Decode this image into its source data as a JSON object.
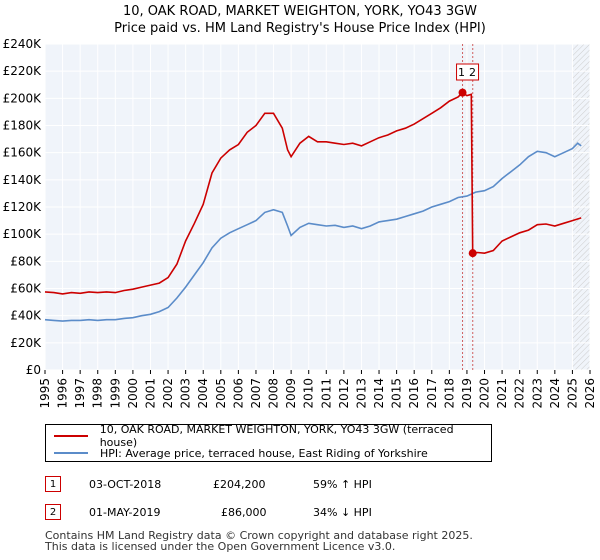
{
  "header": {
    "title": "10, OAK ROAD, MARKET WEIGHTON, YORK, YO43 3GW",
    "subtitle": "Price paid vs. HM Land Registry's House Price Index (HPI)"
  },
  "chart_data": {
    "type": "line",
    "title": "10, OAK ROAD, MARKET WEIGHTON, YORK, YO43 3GW",
    "subtitle": "Price paid vs. HM Land Registry's House Price Index (HPI)",
    "xlim": [
      1995,
      2026
    ],
    "ylim": [
      0,
      240000
    ],
    "x_ticks": [
      "1995",
      "1996",
      "1997",
      "1998",
      "1999",
      "2000",
      "2001",
      "2002",
      "2003",
      "2004",
      "2005",
      "2006",
      "2007",
      "2008",
      "2009",
      "2010",
      "2011",
      "2012",
      "2013",
      "2014",
      "2015",
      "2016",
      "2017",
      "2018",
      "2019",
      "2020",
      "2021",
      "2022",
      "2023",
      "2024",
      "2025",
      "2026"
    ],
    "y_ticks": [
      {
        "value": 0,
        "label": "£0"
      },
      {
        "value": 20000,
        "label": "£20K"
      },
      {
        "value": 40000,
        "label": "£40K"
      },
      {
        "value": 60000,
        "label": "£60K"
      },
      {
        "value": 80000,
        "label": "£80K"
      },
      {
        "value": 100000,
        "label": "£100K"
      },
      {
        "value": 120000,
        "label": "£120K"
      },
      {
        "value": 140000,
        "label": "£140K"
      },
      {
        "value": 160000,
        "label": "£160K"
      },
      {
        "value": 180000,
        "label": "£180K"
      },
      {
        "value": 200000,
        "label": "£200K"
      },
      {
        "value": 220000,
        "label": "£220K"
      },
      {
        "value": 240000,
        "label": "£240K"
      }
    ],
    "grid": true,
    "series": [
      {
        "name": "10, OAK ROAD, MARKET WEIGHTON, YORK, YO43 3GW (terraced house)",
        "color": "#cc0000",
        "points": [
          [
            1995.0,
            57500
          ],
          [
            1995.5,
            57000
          ],
          [
            1996.0,
            56000
          ],
          [
            1996.5,
            57000
          ],
          [
            1997.0,
            56500
          ],
          [
            1997.5,
            57500
          ],
          [
            1998.0,
            57000
          ],
          [
            1998.5,
            57500
          ],
          [
            1999.0,
            57000
          ],
          [
            1999.5,
            58500
          ],
          [
            2000.0,
            59500
          ],
          [
            2000.5,
            61000
          ],
          [
            2001.0,
            62500
          ],
          [
            2001.5,
            64000
          ],
          [
            2002.0,
            68000
          ],
          [
            2002.5,
            78000
          ],
          [
            2003.0,
            95000
          ],
          [
            2003.5,
            108000
          ],
          [
            2004.0,
            122000
          ],
          [
            2004.5,
            145000
          ],
          [
            2005.0,
            156000
          ],
          [
            2005.5,
            162000
          ],
          [
            2006.0,
            166000
          ],
          [
            2006.5,
            175000
          ],
          [
            2007.0,
            180000
          ],
          [
            2007.5,
            189000
          ],
          [
            2008.0,
            189000
          ],
          [
            2008.5,
            178000
          ],
          [
            2008.8,
            162000
          ],
          [
            2009.0,
            157000
          ],
          [
            2009.5,
            167000
          ],
          [
            2010.0,
            172000
          ],
          [
            2010.5,
            168000
          ],
          [
            2011.0,
            168000
          ],
          [
            2011.5,
            167000
          ],
          [
            2012.0,
            166000
          ],
          [
            2012.5,
            167000
          ],
          [
            2013.0,
            165000
          ],
          [
            2013.5,
            168000
          ],
          [
            2014.0,
            171000
          ],
          [
            2014.5,
            173000
          ],
          [
            2015.0,
            176000
          ],
          [
            2015.5,
            178000
          ],
          [
            2016.0,
            181000
          ],
          [
            2016.5,
            185000
          ],
          [
            2017.0,
            189000
          ],
          [
            2017.5,
            193000
          ],
          [
            2018.0,
            198000
          ],
          [
            2018.5,
            201000
          ],
          [
            2018.75,
            204200
          ],
          [
            2019.0,
            202000
          ],
          [
            2019.25,
            203000
          ],
          [
            2019.33,
            86000
          ],
          [
            2019.6,
            86500
          ],
          [
            2020.0,
            86000
          ],
          [
            2020.5,
            88000
          ],
          [
            2021.0,
            95000
          ],
          [
            2021.5,
            98000
          ],
          [
            2022.0,
            101000
          ],
          [
            2022.5,
            103000
          ],
          [
            2023.0,
            107000
          ],
          [
            2023.5,
            107500
          ],
          [
            2024.0,
            106000
          ],
          [
            2024.5,
            108000
          ],
          [
            2025.0,
            110000
          ],
          [
            2025.5,
            112000
          ]
        ]
      },
      {
        "name": "HPI: Average price, terraced house, East Riding of Yorkshire",
        "color": "#5b8cc9",
        "points": [
          [
            1995.0,
            37000
          ],
          [
            1995.5,
            36500
          ],
          [
            1996.0,
            36000
          ],
          [
            1996.5,
            36500
          ],
          [
            1997.0,
            36500
          ],
          [
            1997.5,
            37000
          ],
          [
            1998.0,
            36500
          ],
          [
            1998.5,
            37000
          ],
          [
            1999.0,
            37000
          ],
          [
            1999.5,
            38000
          ],
          [
            2000.0,
            38500
          ],
          [
            2000.5,
            40000
          ],
          [
            2001.0,
            41000
          ],
          [
            2001.5,
            43000
          ],
          [
            2002.0,
            46000
          ],
          [
            2002.5,
            53000
          ],
          [
            2003.0,
            61000
          ],
          [
            2003.5,
            70000
          ],
          [
            2004.0,
            79000
          ],
          [
            2004.5,
            90000
          ],
          [
            2005.0,
            97000
          ],
          [
            2005.5,
            101000
          ],
          [
            2006.0,
            104000
          ],
          [
            2006.5,
            107000
          ],
          [
            2007.0,
            110000
          ],
          [
            2007.5,
            116000
          ],
          [
            2008.0,
            118000
          ],
          [
            2008.5,
            116000
          ],
          [
            2008.8,
            106000
          ],
          [
            2009.0,
            99000
          ],
          [
            2009.5,
            105000
          ],
          [
            2010.0,
            108000
          ],
          [
            2010.5,
            107000
          ],
          [
            2011.0,
            106000
          ],
          [
            2011.5,
            106500
          ],
          [
            2012.0,
            105000
          ],
          [
            2012.5,
            106000
          ],
          [
            2013.0,
            104000
          ],
          [
            2013.5,
            106000
          ],
          [
            2014.0,
            109000
          ],
          [
            2014.5,
            110000
          ],
          [
            2015.0,
            111000
          ],
          [
            2015.5,
            113000
          ],
          [
            2016.0,
            115000
          ],
          [
            2016.5,
            117000
          ],
          [
            2017.0,
            120000
          ],
          [
            2017.5,
            122000
          ],
          [
            2018.0,
            124000
          ],
          [
            2018.5,
            127000
          ],
          [
            2019.0,
            128000
          ],
          [
            2019.5,
            131000
          ],
          [
            2020.0,
            132000
          ],
          [
            2020.5,
            135000
          ],
          [
            2021.0,
            141000
          ],
          [
            2021.5,
            146000
          ],
          [
            2022.0,
            151000
          ],
          [
            2022.5,
            157000
          ],
          [
            2023.0,
            161000
          ],
          [
            2023.5,
            160000
          ],
          [
            2024.0,
            157000
          ],
          [
            2024.5,
            160000
          ],
          [
            2025.0,
            163000
          ],
          [
            2025.3,
            167000
          ],
          [
            2025.5,
            165000
          ]
        ]
      }
    ],
    "markers": [
      {
        "label": "1",
        "x": 2018.75,
        "y": 204200,
        "line_x": 2018.75
      },
      {
        "label": "2",
        "x": 2019.33,
        "y": 86000,
        "line_x": 2019.33
      }
    ],
    "forecast_start_x": 2025.0,
    "legend": [
      {
        "label": "10, OAK ROAD, MARKET WEIGHTON, YORK, YO43 3GW (terraced house)",
        "color": "#cc0000"
      },
      {
        "label": "HPI: Average price, terraced house, East Riding of Yorkshire",
        "color": "#5b8cc9"
      }
    ]
  },
  "transactions": [
    {
      "num": "1",
      "date": "03-OCT-2018",
      "price": "£204,200",
      "hpi": "59% ↑ HPI"
    },
    {
      "num": "2",
      "date": "01-MAY-2019",
      "price": "£86,000",
      "hpi": "34% ↓ HPI"
    }
  ],
  "footer": {
    "line1": "Contains HM Land Registry data © Crown copyright and database right 2025.",
    "line2": "This data is licensed under the Open Government Licence v3.0."
  }
}
